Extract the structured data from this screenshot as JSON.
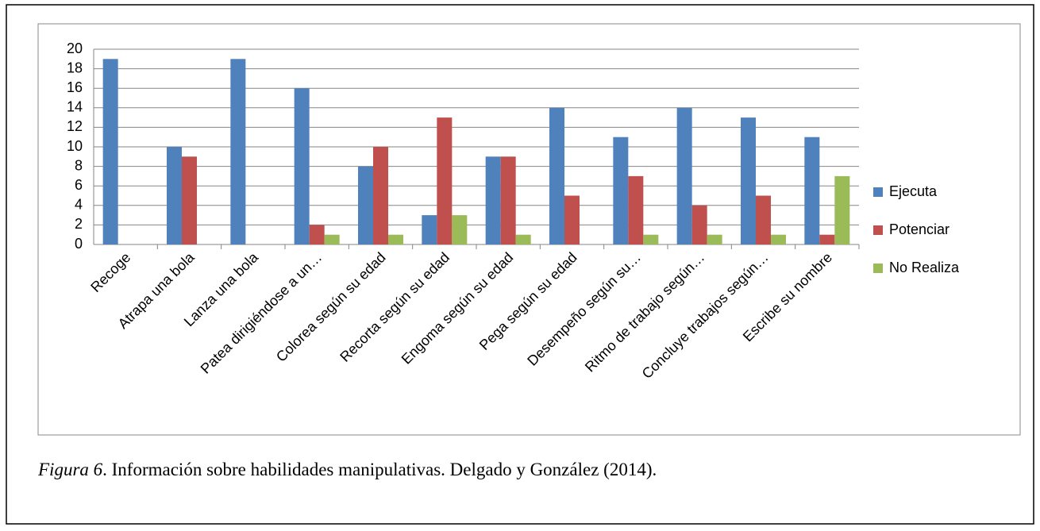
{
  "chart_data": {
    "type": "bar",
    "categories": [
      "Recoge",
      "Atrapa una bola",
      "Lanza una bola",
      "Patea dirigiéndose a un…",
      "Colorea según su edad",
      "Recorta según su edad",
      "Engoma según su edad",
      "Pega según su edad",
      "Desempeño según su…",
      "Ritmo de trabajo según…",
      "Concluye trabajos según…",
      "Escribe su nombre"
    ],
    "series": [
      {
        "name": "Ejecuta",
        "color": "#4f81bd",
        "values": [
          19,
          10,
          19,
          16,
          8,
          3,
          9,
          14,
          11,
          14,
          13,
          11
        ]
      },
      {
        "name": "Potenciar",
        "color": "#c0504d",
        "values": [
          0,
          9,
          0,
          2,
          10,
          13,
          9,
          5,
          7,
          4,
          5,
          1
        ]
      },
      {
        "name": "No Realiza",
        "color": "#9bbb59",
        "values": [
          0,
          0,
          0,
          1,
          1,
          3,
          1,
          0,
          1,
          1,
          1,
          7
        ]
      }
    ],
    "ylim": [
      0,
      20
    ],
    "yticks": [
      0,
      2,
      4,
      6,
      8,
      10,
      12,
      14,
      16,
      18,
      20
    ],
    "grid": true,
    "legend": "right"
  },
  "caption": {
    "label": "Figura 6",
    "text": ". Información sobre habilidades manipulativas. Delgado y González (2014)."
  }
}
